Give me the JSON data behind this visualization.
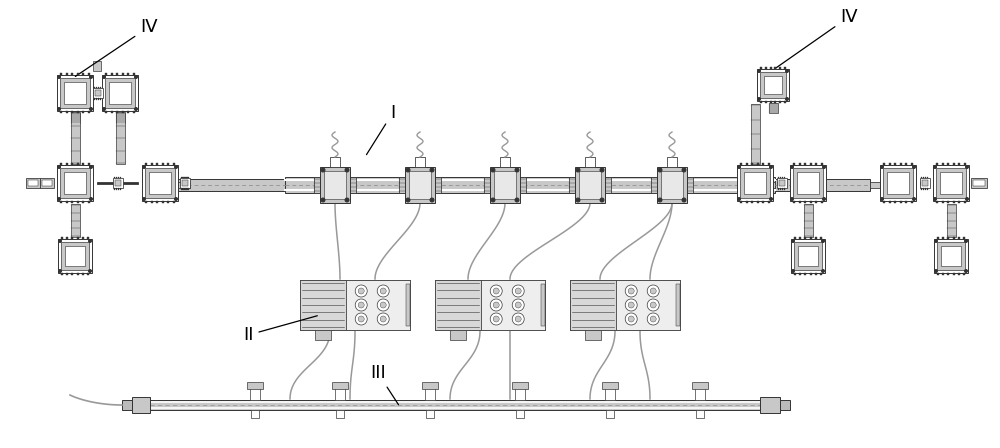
{
  "bg_color": "#ffffff",
  "lc": "#333333",
  "fl": "#c8c8c8",
  "fm": "#999999",
  "fd": "#666666",
  "fw": "#ffffff",
  "lw": 0.7,
  "figsize": [
    10.0,
    4.48
  ],
  "dpi": 100,
  "label_I": "I",
  "label_II": "II",
  "label_III": "III",
  "label_IV": "IV",
  "font_size": 13
}
